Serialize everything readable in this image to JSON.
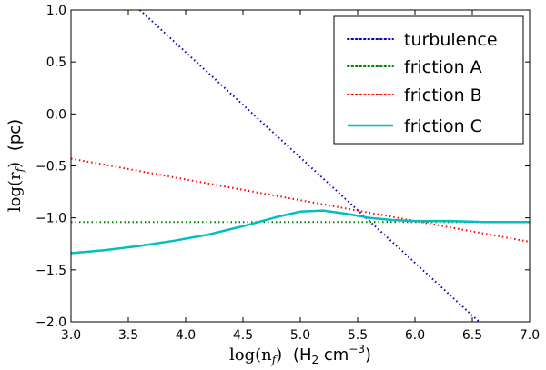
{
  "chart_data": {
    "type": "line",
    "xlabel": "log(n_f) (H₂ cm⁻³)",
    "xlabel_parts": {
      "math": "log(n",
      "sub": "f",
      "close": ")",
      "unit_open": "(H",
      "unit_sub": "2",
      "unit_cm": " cm",
      "unit_sup": "−3",
      "unit_close": ")"
    },
    "ylabel": "log(r_f) (pc)",
    "ylabel_parts": {
      "math": "log(r",
      "sub": "f",
      "close": ")",
      "unit": "(pc)"
    },
    "xlim": [
      3.0,
      7.0
    ],
    "ylim": [
      -2.0,
      1.0
    ],
    "x_ticks": [
      3.0,
      3.5,
      4.0,
      4.5,
      5.0,
      5.5,
      6.0,
      6.5,
      7.0
    ],
    "x_tick_labels": [
      "3.0",
      "3.5",
      "4.0",
      "4.5",
      "5.0",
      "5.5",
      "6.0",
      "6.5",
      "7.0"
    ],
    "y_ticks": [
      1.0,
      0.5,
      0.0,
      -0.5,
      -1.0,
      -1.5,
      -2.0
    ],
    "y_tick_labels": [
      "1.0",
      "0.5",
      "0.0",
      "−0.5",
      "−1.0",
      "−1.5",
      "−2.0"
    ],
    "grid": false,
    "legend_position": "top-right",
    "series": [
      {
        "name": "turbulence",
        "color": "#0000bf",
        "style": "dotted",
        "x": [
          3.6,
          6.56
        ],
        "y": [
          1.0,
          -2.0
        ]
      },
      {
        "name": "friction A",
        "color": "#008000",
        "style": "dotted",
        "x": [
          3.0,
          7.0
        ],
        "y": [
          -1.04,
          -1.04
        ]
      },
      {
        "name": "friction B",
        "color": "#ff0000",
        "style": "dotted",
        "x": [
          3.0,
          7.0
        ],
        "y": [
          -0.43,
          -1.23
        ]
      },
      {
        "name": "friction C",
        "color": "#00bfbf",
        "style": "solid",
        "x": [
          3.0,
          3.3,
          3.6,
          3.9,
          4.2,
          4.5,
          4.8,
          5.0,
          5.2,
          5.4,
          5.6,
          5.8,
          6.0,
          6.3,
          6.6,
          7.0
        ],
        "y": [
          -1.34,
          -1.31,
          -1.27,
          -1.22,
          -1.16,
          -1.08,
          -0.99,
          -0.94,
          -0.93,
          -0.96,
          -1.0,
          -1.02,
          -1.03,
          -1.03,
          -1.04,
          -1.04
        ]
      }
    ]
  }
}
